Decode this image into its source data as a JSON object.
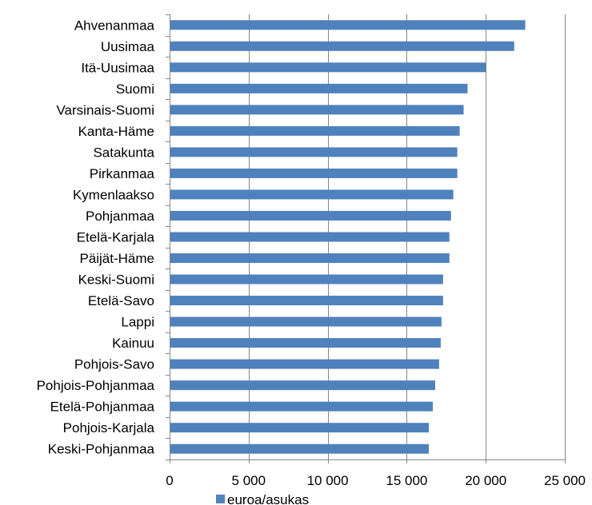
{
  "chart_data": {
    "type": "bar",
    "orientation": "horizontal",
    "categories": [
      "Ahvenanmaa",
      "Uusimaa",
      "Itä-Uusimaa",
      "Suomi",
      "Varsinais-Suomi",
      "Kanta-Häme",
      "Satakunta",
      "Pirkanmaa",
      "Kymenlaakso",
      "Pohjanmaa",
      "Etelä-Karjala",
      "Päijät-Häme",
      "Keski-Suomi",
      "Etelä-Savo",
      "Lappi",
      "Kainuu",
      "Pohjois-Savo",
      "Pohjois-Pohjanmaa",
      "Etelä-Pohjanmaa",
      "Pohjois-Karjala",
      "Keski-Pohjanmaa"
    ],
    "series": [
      {
        "name": "euroa/asukas",
        "color": "#4F81BD",
        "values": [
          22500,
          21800,
          20000,
          18850,
          18600,
          18350,
          18200,
          18200,
          17950,
          17800,
          17700,
          17700,
          17300,
          17300,
          17200,
          17150,
          17050,
          16800,
          16650,
          16400,
          16400
        ]
      }
    ],
    "xlim": [
      0,
      25000
    ],
    "xticks": [
      0,
      5000,
      10000,
      15000,
      20000,
      25000
    ],
    "xtick_labels": [
      "0",
      "5 000",
      "10 000",
      "15 000",
      "20 000",
      "25 000"
    ],
    "grid": "vertical",
    "legend": "bottom-left",
    "gridline_color": "#868686",
    "axis_color": "#868686"
  }
}
